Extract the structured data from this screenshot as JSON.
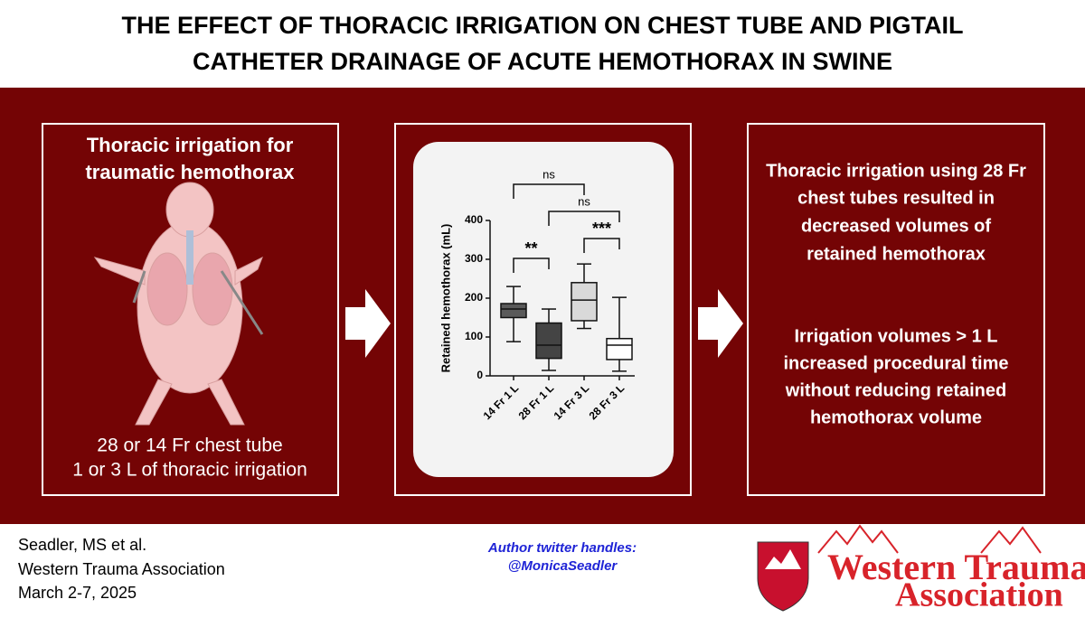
{
  "header": {
    "title": [
      "THE EFFECT OF THORACIC IRRIGATION ON CHEST TUBE AND PIGTAIL",
      "CATHETER DRAINAGE OF ACUTE HEMOTHORAX IN SWINE"
    ]
  },
  "left_panel": {
    "heading": [
      "Thoracic irrigation for",
      "traumatic hemothorax"
    ],
    "caption": [
      "28 or 14 Fr chest tube",
      "1 or 3 L of thoracic irrigation"
    ]
  },
  "chart_data": {
    "type": "box",
    "y_label": "Retained hemothorax (mL)",
    "categories": [
      "14 Fr 1 L",
      "28 Fr 1 L",
      "14 Fr 3 L",
      "28 Fr 3 L"
    ],
    "boxes": [
      {
        "min": 88,
        "q1": 150,
        "median": 172,
        "q3": 186,
        "max": 230,
        "color": "#5a5a5a"
      },
      {
        "min": 14,
        "q1": 45,
        "median": 79,
        "q3": 136,
        "max": 172,
        "color": "#444444"
      },
      {
        "min": 122,
        "q1": 142,
        "median": 195,
        "q3": 240,
        "max": 288,
        "color": "#d9d9d9"
      },
      {
        "min": 12,
        "q1": 42,
        "median": 79,
        "q3": 96,
        "max": 202,
        "color": "#ffffff"
      }
    ],
    "ylim": [
      0,
      400
    ],
    "yticks": [
      0,
      100,
      200,
      300,
      400
    ],
    "comparisons": [
      {
        "from": "14 Fr 1 L",
        "to": "14 Fr 3 L",
        "label": "ns"
      },
      {
        "from": "28 Fr 1 L",
        "to": "28 Fr 3 L",
        "label": "ns"
      },
      {
        "from": "14 Fr 1 L",
        "to": "28 Fr 1 L",
        "label": "**"
      },
      {
        "from": "14 Fr 3 L",
        "to": "28 Fr 3 L",
        "label": "***"
      }
    ]
  },
  "right_panel": {
    "finding_1": [
      "Thoracic irrigation using 28 Fr",
      "chest tubes resulted in",
      "decreased volumes of",
      "retained hemothorax"
    ],
    "finding_2": [
      "Irrigation volumes > 1 L",
      "increased procedural time",
      "without reducing retained",
      "hemothorax volume"
    ]
  },
  "footer": {
    "citation": [
      "Seadler, MS et al.",
      "Western Trauma Association",
      "March 2-7, 2025"
    ],
    "twitter": [
      "Author twitter handles:",
      "@MonicaSeadler"
    ],
    "logo": [
      "Western Trauma",
      "Association"
    ]
  }
}
